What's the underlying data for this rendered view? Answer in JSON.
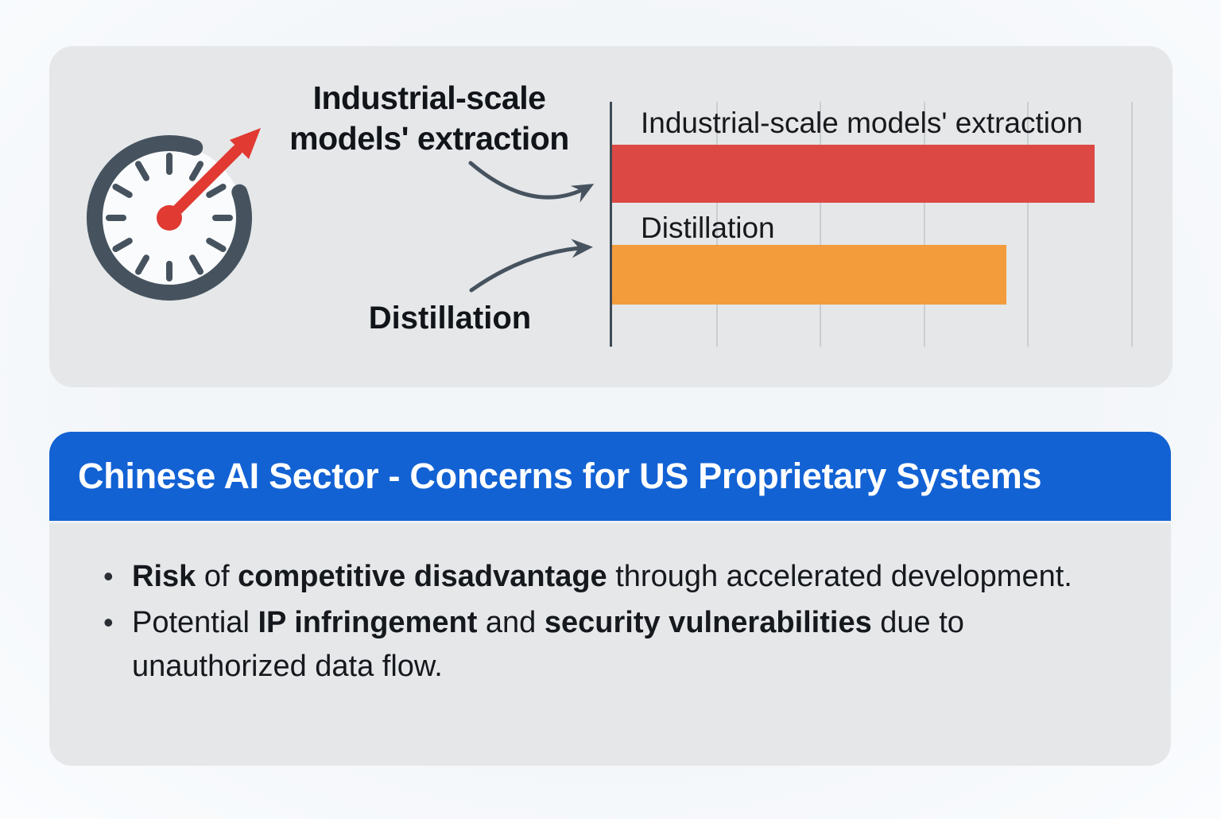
{
  "top_panel": {
    "icon": "speedometer-clock",
    "callout_extraction": {
      "line1": "Industrial-scale",
      "line2": "models' extraction"
    },
    "callout_distillation": "Distillation"
  },
  "chart_data": {
    "type": "bar",
    "orientation": "horizontal",
    "title": "",
    "categories": [
      "Industrial-scale models' extraction",
      "Distillation"
    ],
    "values": [
      93,
      76
    ],
    "xlim": [
      0,
      100
    ],
    "gridline_values": [
      20,
      40,
      60,
      80,
      100
    ],
    "bar_colors": [
      "#DC4944",
      "#F29C3C"
    ],
    "grid": "vertical gridlines, unlabeled axis",
    "legend": "none"
  },
  "bottom_panel": {
    "header_title": "Chinese AI Sector - Concerns for US Proprietary Systems",
    "bullets": [
      {
        "segments": [
          {
            "text": "Risk",
            "bold": true
          },
          {
            "text": " of ",
            "bold": false
          },
          {
            "text": "competitive disadvantage",
            "bold": true
          },
          {
            "text": " through accelerated development.",
            "bold": false
          }
        ]
      },
      {
        "segments": [
          {
            "text": "Potential ",
            "bold": false
          },
          {
            "text": "IP infringement",
            "bold": true
          },
          {
            "text": " and ",
            "bold": false
          },
          {
            "text": "security vulnerabilities",
            "bold": true
          },
          {
            "text": " due to unauthorized data flow.",
            "bold": false
          }
        ]
      }
    ]
  },
  "colors": {
    "page_background": "#F4F7FA",
    "panel_background": "#E5E7E9",
    "header_blue": "#1262D4",
    "bar_red": "#DC4944",
    "bar_orange": "#F29C3C",
    "slate": "#46535F",
    "needle_red": "#E03A33",
    "text_dark": "#15181C"
  }
}
